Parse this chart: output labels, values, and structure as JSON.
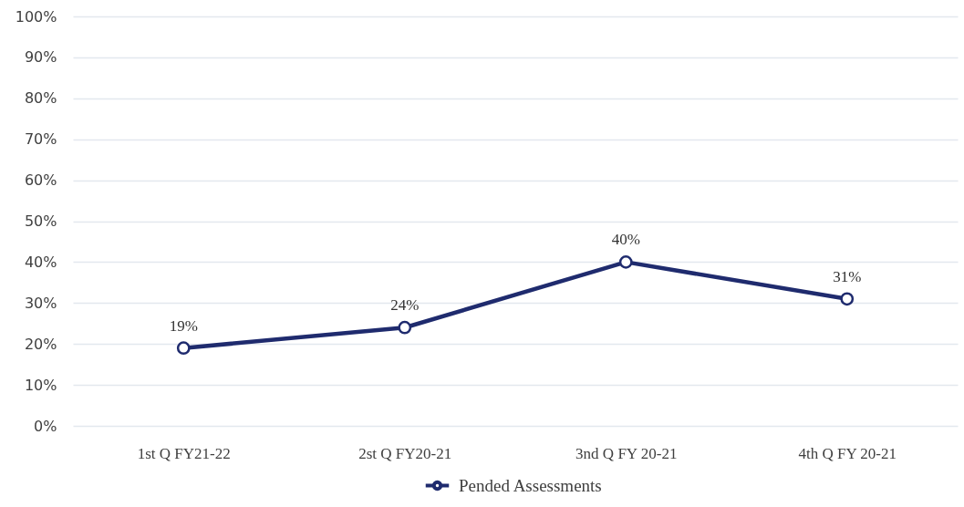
{
  "chart_data": {
    "type": "line",
    "categories": [
      "1st Q FY21-22",
      "2st Q FY20-21",
      "3nd Q FY 20-21",
      "4th Q FY 20-21"
    ],
    "series": [
      {
        "name": "Pended Assessments",
        "color": "#1f2b6e",
        "values": [
          19,
          24,
          40,
          31
        ],
        "value_labels": [
          "19%",
          "24%",
          "40%",
          "31%"
        ]
      }
    ],
    "ylim": [
      0,
      100
    ],
    "yticks": [
      {
        "value": 0,
        "label": "0%"
      },
      {
        "value": 10,
        "label": "10%"
      },
      {
        "value": 20,
        "label": "20%"
      },
      {
        "value": 30,
        "label": "30%"
      },
      {
        "value": 40,
        "label": "40%"
      },
      {
        "value": 50,
        "label": "50%"
      },
      {
        "value": 60,
        "label": "60%"
      },
      {
        "value": 70,
        "label": "70%"
      },
      {
        "value": 80,
        "label": "80%"
      },
      {
        "value": 90,
        "label": "90%"
      },
      {
        "value": 100,
        "label": "100%"
      }
    ],
    "grid": "y",
    "legend": "bottom",
    "marker": "circle",
    "line_style": "solid"
  }
}
